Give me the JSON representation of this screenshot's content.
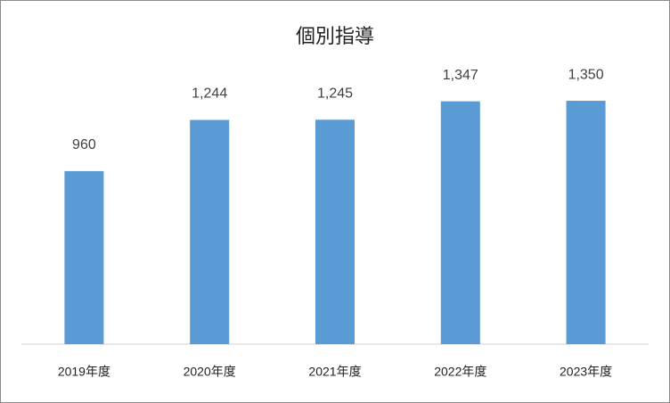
{
  "chart_data": {
    "type": "bar",
    "title": "個別指導",
    "categories": [
      "2019年度",
      "2020年度",
      "2021年度",
      "2022年度",
      "2023年度"
    ],
    "values": [
      960,
      1244,
      1245,
      1347,
      1350
    ],
    "value_labels": [
      "960",
      "1,244",
      "1,245",
      "1,347",
      "1,350"
    ],
    "color": "#5b9bd5",
    "ylim": [
      0,
      1600
    ]
  }
}
